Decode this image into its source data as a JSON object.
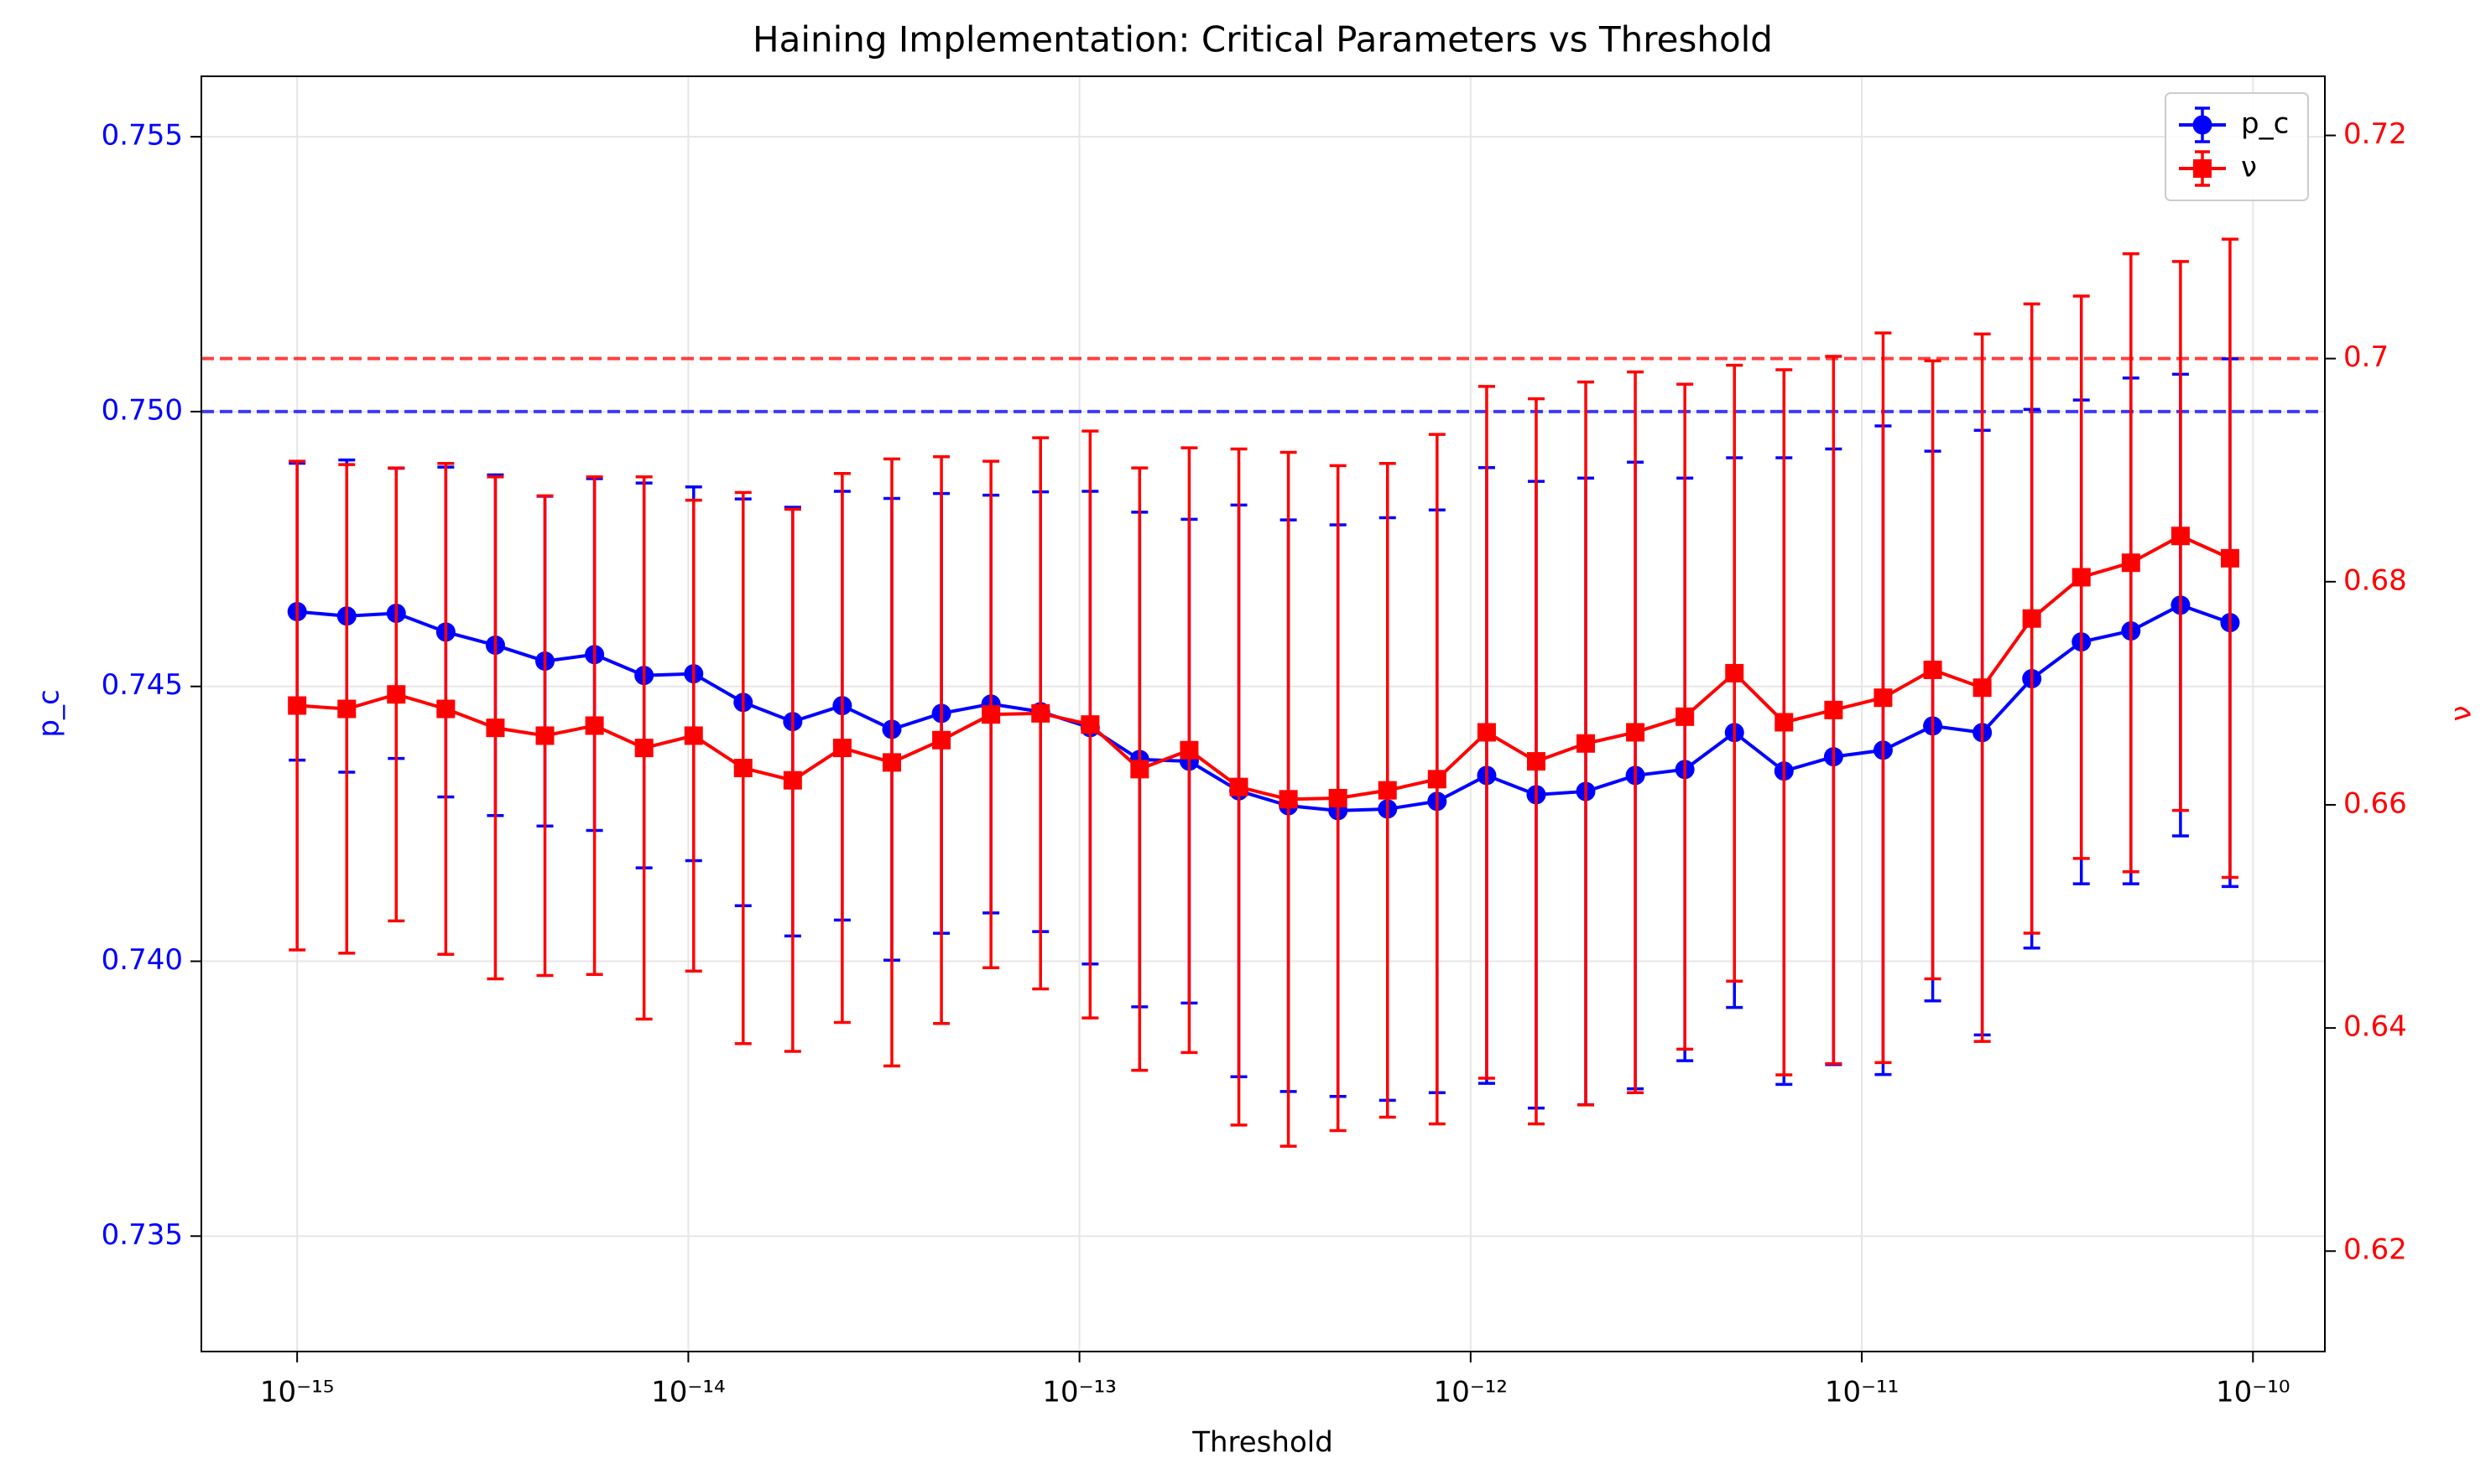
{
  "chart_data": {
    "type": "errorbar_line",
    "title": "Haining Implementation: Critical Parameters vs Threshold",
    "xlabel": "Threshold",
    "ylabel": "p_c",
    "y2label": "ν",
    "xscale": "log",
    "x": [
      1e-15,
      1.339e-15,
      1.792e-15,
      2.399e-15,
      3.212e-15,
      4.3e-15,
      5.757e-15,
      7.707e-15,
      1.032e-14,
      1.381e-14,
      1.849e-14,
      2.475e-14,
      3.314e-14,
      4.437e-14,
      5.94e-14,
      7.952e-14,
      1.065e-13,
      1.425e-13,
      1.908e-13,
      2.555e-13,
      3.42e-13,
      4.579e-13,
      6.13e-13,
      8.207e-13,
      1.099e-12,
      1.471e-12,
      1.969e-12,
      2.636e-12,
      3.529e-12,
      4.725e-12,
      6.324e-12,
      8.467e-12,
      1.1335e-11,
      1.518e-11,
      2.032e-11,
      2.72e-11,
      3.641e-11,
      4.875e-11,
      6.527e-11,
      8.737e-11
    ],
    "xlim": [
      5.69e-16,
      1.527e-10
    ],
    "xticks": [
      {
        "value": 1e-15,
        "label": "10⁻¹⁵"
      },
      {
        "value": 1e-14,
        "label": "10⁻¹⁴"
      },
      {
        "value": 1e-13,
        "label": "10⁻¹³"
      },
      {
        "value": 1e-12,
        "label": "10⁻¹²"
      },
      {
        "value": 1e-11,
        "label": "10⁻¹¹"
      },
      {
        "value": 1e-10,
        "label": "10⁻¹⁰"
      }
    ],
    "ylim": [
      0.7329,
      0.7561
    ],
    "yticks": [
      {
        "value": 0.735,
        "label": "0.735"
      },
      {
        "value": 0.74,
        "label": "0.740"
      },
      {
        "value": 0.745,
        "label": "0.745"
      },
      {
        "value": 0.75,
        "label": "0.750"
      },
      {
        "value": 0.755,
        "label": "0.755"
      }
    ],
    "y2lim": [
      0.611,
      0.7253
    ],
    "y2ticks": [
      0.62,
      0.64,
      0.66,
      0.68,
      0.7,
      0.72
    ],
    "grid": true,
    "legend": "upper right",
    "series": [
      {
        "name": "p_c",
        "color": "#0000ff",
        "marker": "circle",
        "values": [
          0.74636,
          0.74628,
          0.74633,
          0.74599,
          0.74575,
          0.74546,
          0.74558,
          0.7452,
          0.74523,
          0.74471,
          0.74436,
          0.74465,
          0.74422,
          0.74451,
          0.74468,
          0.74454,
          0.74425,
          0.74367,
          0.74364,
          0.7431,
          0.74283,
          0.74274,
          0.74277,
          0.74291,
          0.74338,
          0.74303,
          0.74309,
          0.74338,
          0.74349,
          0.74416,
          0.74346,
          0.74372,
          0.74384,
          0.74428,
          0.74416,
          0.74514,
          0.74581,
          0.74601,
          0.74648,
          0.74616
        ],
        "errors": [
          0.0027,
          0.00284,
          0.00264,
          0.003,
          0.0031,
          0.003,
          0.0032,
          0.0035,
          0.0034,
          0.0037,
          0.0039,
          0.0039,
          0.0042,
          0.004,
          0.0038,
          0.004,
          0.0043,
          0.0045,
          0.0044,
          0.0052,
          0.0052,
          0.0052,
          0.0053,
          0.0053,
          0.0056,
          0.0057,
          0.0057,
          0.0057,
          0.0053,
          0.005,
          0.0057,
          0.0056,
          0.0059,
          0.005,
          0.0055,
          0.0049,
          0.0044,
          0.0046,
          0.0042,
          0.0048
        ]
      },
      {
        "name": "ν",
        "color": "#ff0000",
        "marker": "square",
        "axis": "y2",
        "values": [
          0.6689,
          0.6686,
          0.6699,
          0.6686,
          0.6669,
          0.6662,
          0.6671,
          0.6651,
          0.6662,
          0.6633,
          0.6622,
          0.6651,
          0.6638,
          0.6658,
          0.6681,
          0.6682,
          0.6672,
          0.6632,
          0.6649,
          0.6616,
          0.6605,
          0.6606,
          0.6613,
          0.6623,
          0.6665,
          0.6639,
          0.6655,
          0.6665,
          0.6679,
          0.6718,
          0.6674,
          0.6685,
          0.6696,
          0.6721,
          0.6705,
          0.6767,
          0.6804,
          0.6817,
          0.6841,
          0.6821
        ],
        "errors": [
          0.0219,
          0.0219,
          0.0203,
          0.022,
          0.0225,
          0.0215,
          0.0223,
          0.0243,
          0.0211,
          0.0247,
          0.0243,
          0.0246,
          0.0272,
          0.0254,
          0.0227,
          0.0247,
          0.0263,
          0.027,
          0.0271,
          0.0303,
          0.0311,
          0.0298,
          0.0293,
          0.0309,
          0.031,
          0.0325,
          0.0324,
          0.0323,
          0.0298,
          0.0276,
          0.0316,
          0.0317,
          0.0327,
          0.0277,
          0.0317,
          0.0282,
          0.0252,
          0.0277,
          0.0246,
          0.0286
        ]
      }
    ],
    "hlines": [
      {
        "value": 0.75,
        "color": "#0000ff"
      },
      {
        "value": 0.7,
        "color": "#ff0000",
        "axis": "y2"
      }
    ]
  }
}
